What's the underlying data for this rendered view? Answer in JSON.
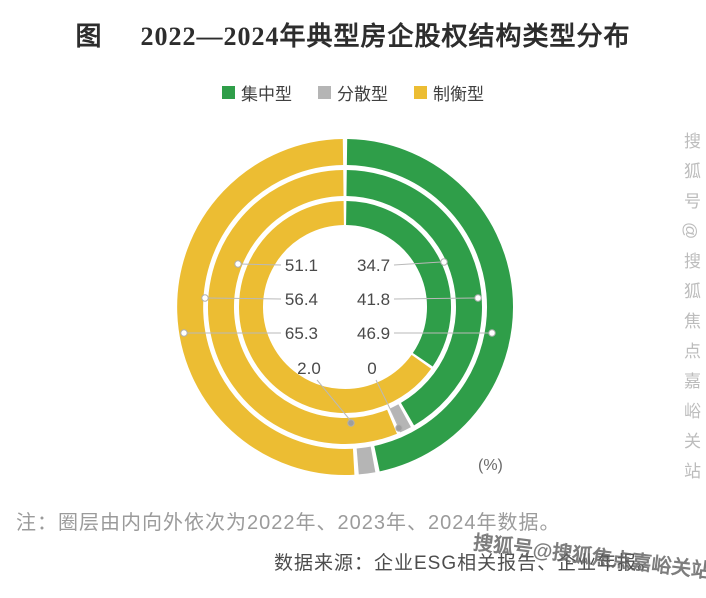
{
  "title": {
    "prefix": "图",
    "text": "2022—2024年典型房企股权结构类型分布"
  },
  "legend": [
    {
      "label": "集中型",
      "color": "#2f9e49"
    },
    {
      "label": "分散型",
      "color": "#b5b5b5"
    },
    {
      "label": "制衡型",
      "color": "#ecbd33"
    }
  ],
  "chart_data": {
    "type": "pie",
    "subtype": "concentric-donut-rings",
    "unit": "(%)",
    "legend_position": "top",
    "categories": [
      "集中型",
      "分散型",
      "制衡型"
    ],
    "rings": [
      {
        "year": "2022",
        "position": "inner",
        "values": {
          "集中型": 34.7,
          "分散型": 0,
          "制衡型": 65.3
        }
      },
      {
        "year": "2023",
        "position": "middle",
        "values": {
          "集中型": 41.8,
          "分散型": 1.8,
          "制衡型": 56.4
        }
      },
      {
        "year": "2024",
        "position": "outer",
        "values": {
          "集中型": 46.9,
          "分散型": 2.0,
          "制衡型": 51.1
        }
      }
    ],
    "callouts": [
      {
        "value": "51.1",
        "year": "2024",
        "category": "制衡型"
      },
      {
        "value": "56.4",
        "year": "2023",
        "category": "制衡型"
      },
      {
        "value": "65.3",
        "year": "2022",
        "category": "制衡型"
      },
      {
        "value": "2.0",
        "year": "2024",
        "category": "分散型"
      },
      {
        "value": "34.7",
        "year": "2022",
        "category": "集中型"
      },
      {
        "value": "41.8",
        "year": "2023",
        "category": "集中型"
      },
      {
        "value": "46.9",
        "year": "2024",
        "category": "集中型"
      },
      {
        "value": "0",
        "year": "2022",
        "category": "分散型"
      }
    ]
  },
  "note": "注：圈层由内向外依次为2022年、2023年、2024年数据。",
  "source": "数据来源：企业ESG相关报告、企业年报。",
  "watermark": "搜狐号@搜狐焦点嘉峪关站"
}
